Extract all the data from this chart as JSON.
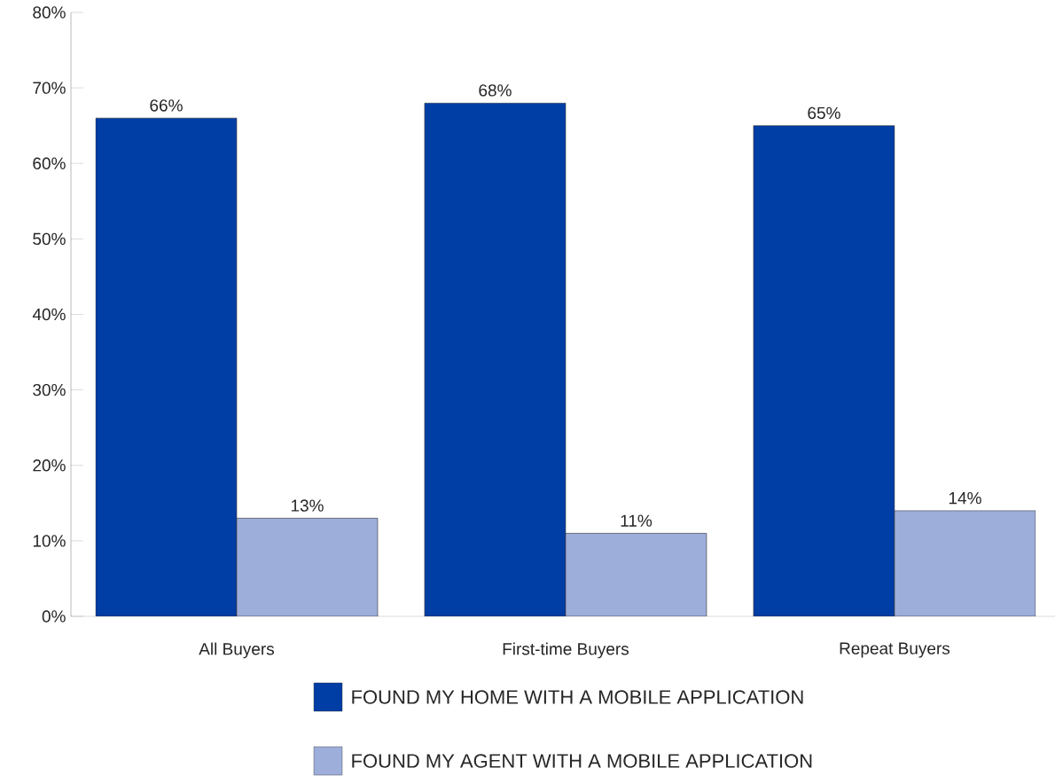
{
  "chart_data": {
    "type": "bar",
    "categories": [
      "All Buyers",
      "First-time Buyers",
      "Repeat Buyers"
    ],
    "series": [
      {
        "name": "FOUND MY HOME WITH A MOBILE APPLICATION",
        "color": "#003da5",
        "values": [
          66,
          68,
          65
        ],
        "value_labels": [
          "66%",
          "68%",
          "65%"
        ]
      },
      {
        "name": "FOUND MY AGENT WITH A MOBILE APPLICATION",
        "color": "#9eaedb",
        "values": [
          13,
          11,
          14
        ],
        "value_labels": [
          "13%",
          "11%",
          "14%"
        ]
      }
    ],
    "ylim": [
      0,
      80
    ],
    "yticks": [
      {
        "value": 0,
        "label": "0%"
      },
      {
        "value": 10,
        "label": "10%"
      },
      {
        "value": 20,
        "label": "20%"
      },
      {
        "value": 30,
        "label": "30%"
      },
      {
        "value": 40,
        "label": "40%"
      },
      {
        "value": 50,
        "label": "50%"
      },
      {
        "value": 60,
        "label": "60%"
      },
      {
        "value": 70,
        "label": "70%"
      },
      {
        "value": 80,
        "label": "80%"
      }
    ],
    "grid": false,
    "legend": "bottom"
  }
}
